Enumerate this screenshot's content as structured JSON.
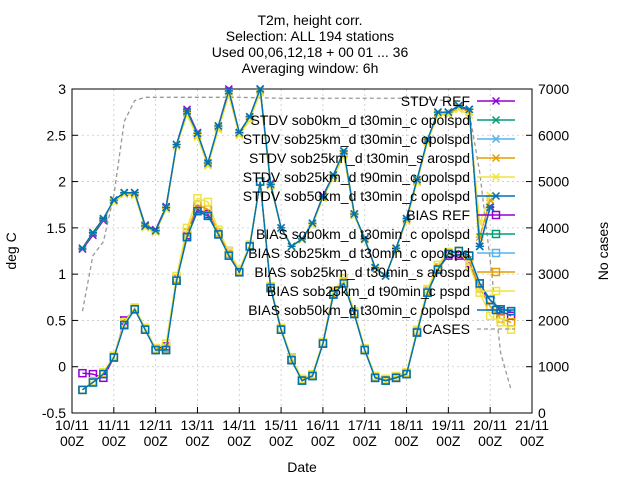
{
  "chart_data": {
    "type": "line",
    "title_lines": [
      "T2m, height corr.",
      "Selection: ALL    194 stations",
      "Used 00,06,12,18 + 00 01 ... 36",
      "Averaging window:  6h"
    ],
    "xlabel": "Date",
    "ylabel": "deg C",
    "y2label": "No cases",
    "ylim": [
      -0.5,
      3
    ],
    "y2lim": [
      0,
      7000
    ],
    "yticks": [
      "-0.5",
      "0",
      "0.5",
      "1",
      "1.5",
      "2",
      "2.5",
      "3"
    ],
    "y2ticks": [
      "0",
      "1000",
      "2000",
      "3000",
      "4000",
      "5000",
      "6000",
      "7000"
    ],
    "xticks": [
      {
        "date": "10/11",
        "hour": "00Z"
      },
      {
        "date": "11/11",
        "hour": "00Z"
      },
      {
        "date": "12/11",
        "hour": "00Z"
      },
      {
        "date": "13/11",
        "hour": "00Z"
      },
      {
        "date": "14/11",
        "hour": "00Z"
      },
      {
        "date": "15/11",
        "hour": "00Z"
      },
      {
        "date": "16/11",
        "hour": "00Z"
      },
      {
        "date": "17/11",
        "hour": "00Z"
      },
      {
        "date": "18/11",
        "hour": "00Z"
      },
      {
        "date": "19/11",
        "hour": "00Z"
      },
      {
        "date": "20/11",
        "hour": "00Z"
      },
      {
        "date": "21/11",
        "hour": "00Z"
      }
    ],
    "x_start_date": "10/11 00Z",
    "x_step_hours": 6,
    "x_step_note": "",
    "grid": true,
    "legend_position": "top-right",
    "series": [
      {
        "name": "STDV REF",
        "color": "#9400d3",
        "marker": "x",
        "values": [
          1.27,
          1.42,
          1.58,
          1.8,
          1.88,
          1.88,
          1.53,
          1.48,
          1.73,
          2.4,
          2.78,
          2.53,
          2.2,
          2.6,
          3.0,
          2.52,
          2.7,
          3.0,
          1.98,
          1.5,
          1.3,
          1.38,
          1.55,
          1.85,
          2.07,
          2.3,
          1.65,
          1.38,
          1.07,
          0.98,
          1.28,
          1.6,
          2.02,
          2.45,
          2.75,
          2.75,
          2.8,
          2.78,
          1.3,
          1.73
        ]
      },
      {
        "name": "STDV sob0km_d t30min_c opolspd",
        "color": "#009e73",
        "marker": "x",
        "values": [
          1.28,
          1.44,
          1.59,
          1.8,
          1.88,
          1.88,
          1.52,
          1.47,
          1.72,
          2.4,
          2.76,
          2.52,
          2.2,
          2.6,
          2.98,
          2.53,
          2.7,
          3.0,
          1.97,
          1.5,
          1.3,
          1.38,
          1.55,
          1.84,
          2.07,
          2.33,
          1.65,
          1.38,
          1.07,
          0.98,
          1.28,
          1.6,
          2.02,
          2.45,
          2.75,
          2.75,
          2.82,
          2.78,
          1.3,
          1.72
        ]
      },
      {
        "name": "STDV sob25km_d t30min_c opolspd",
        "color": "#56b4e9",
        "marker": "x",
        "values": [
          1.28,
          1.45,
          1.6,
          1.8,
          1.88,
          1.88,
          1.52,
          1.46,
          1.72,
          2.4,
          2.76,
          2.52,
          2.2,
          2.6,
          2.98,
          2.53,
          2.7,
          3.0,
          1.97,
          1.5,
          1.3,
          1.38,
          1.55,
          1.84,
          2.07,
          2.33,
          1.65,
          1.38,
          1.07,
          0.98,
          1.28,
          1.6,
          2.02,
          2.45,
          2.75,
          2.75,
          2.82,
          2.78,
          1.3,
          1.72
        ]
      },
      {
        "name": "STDV sob25km_d t30min_s arospd",
        "color": "#e69f00",
        "marker": "x",
        "values": [
          1.28,
          1.45,
          1.6,
          1.79,
          1.87,
          1.86,
          1.51,
          1.46,
          1.71,
          2.4,
          2.74,
          2.5,
          2.18,
          2.58,
          2.95,
          2.52,
          2.68,
          2.98,
          1.96,
          1.5,
          1.3,
          1.37,
          1.54,
          1.83,
          2.05,
          2.3,
          1.64,
          1.37,
          1.06,
          0.98,
          1.27,
          1.58,
          2.0,
          2.43,
          2.73,
          2.73,
          2.8,
          2.75,
          1.4,
          1.8
        ]
      },
      {
        "name": "STDV sob25km_d t90min_c opolspd",
        "color": "#f0e442",
        "marker": "x",
        "values": [
          1.28,
          1.45,
          1.6,
          1.78,
          1.86,
          1.85,
          1.5,
          1.45,
          1.7,
          2.38,
          2.72,
          2.48,
          2.17,
          2.56,
          2.93,
          2.5,
          2.66,
          2.96,
          1.95,
          1.5,
          1.3,
          1.37,
          1.53,
          1.82,
          2.04,
          2.28,
          1.63,
          1.37,
          1.06,
          0.98,
          1.27,
          1.57,
          1.99,
          2.42,
          2.72,
          2.72,
          2.78,
          2.72,
          1.55,
          1.85
        ]
      },
      {
        "name": "STDV sob50km_d t30min_c opolspd",
        "color": "#0072b2",
        "marker": "x",
        "values": [
          1.28,
          1.45,
          1.6,
          1.8,
          1.88,
          1.88,
          1.52,
          1.47,
          1.72,
          2.4,
          2.76,
          2.52,
          2.2,
          2.6,
          2.98,
          2.53,
          2.7,
          3.0,
          1.97,
          1.5,
          1.3,
          1.38,
          1.55,
          1.84,
          2.07,
          2.33,
          1.65,
          1.38,
          1.07,
          0.98,
          1.28,
          1.6,
          2.02,
          2.45,
          2.75,
          2.75,
          2.82,
          2.78,
          1.3,
          1.72
        ]
      },
      {
        "name": "BIAS REF",
        "color": "#9400d3",
        "marker": "square",
        "values": [
          -0.07,
          -0.08,
          -0.12,
          0.1,
          0.5,
          0.62,
          0.4,
          0.2,
          0.22,
          0.93,
          1.42,
          1.7,
          1.65,
          1.43,
          1.25,
          1.02,
          1.3,
          2.0,
          0.85,
          0.4,
          0.1,
          -0.15,
          -0.1,
          0.25,
          0.78,
          0.9,
          0.57,
          0.18,
          -0.12,
          -0.15,
          -0.12,
          -0.08,
          0.37,
          0.8,
          1.05,
          1.2,
          1.2,
          1.12,
          0.85,
          0.72,
          0.6,
          0.55
        ]
      },
      {
        "name": "BIAS sob0km_d t30min_c opolspd",
        "color": "#009e73",
        "marker": "square",
        "values": [
          -0.25,
          -0.17,
          -0.08,
          0.1,
          0.45,
          0.62,
          0.4,
          0.18,
          0.18,
          0.93,
          1.4,
          1.68,
          1.63,
          1.43,
          1.2,
          1.02,
          1.3,
          2.0,
          0.85,
          0.4,
          0.07,
          -0.15,
          -0.1,
          0.25,
          0.78,
          0.9,
          0.57,
          0.18,
          -0.12,
          -0.15,
          -0.12,
          -0.08,
          0.37,
          0.8,
          1.05,
          1.22,
          1.25,
          1.2,
          0.9,
          0.72,
          0.62,
          0.6
        ]
      },
      {
        "name": "BIAS sob25km_d t30min_c opolspd",
        "color": "#56b4e9",
        "marker": "square",
        "values": [
          -0.25,
          -0.17,
          -0.08,
          0.1,
          0.45,
          0.62,
          0.4,
          0.18,
          0.18,
          0.93,
          1.4,
          1.68,
          1.63,
          1.43,
          1.2,
          1.02,
          1.3,
          2.0,
          0.85,
          0.4,
          0.07,
          -0.15,
          -0.1,
          0.25,
          0.78,
          0.9,
          0.57,
          0.18,
          -0.12,
          -0.15,
          -0.12,
          -0.08,
          0.37,
          0.8,
          1.05,
          1.22,
          1.25,
          1.2,
          0.9,
          0.72,
          0.62,
          0.6
        ]
      },
      {
        "name": "BIAS sob25km_d t30min_s arospd",
        "color": "#e69f00",
        "marker": "square",
        "values": [
          -0.25,
          -0.16,
          -0.07,
          0.11,
          0.46,
          0.63,
          0.41,
          0.19,
          0.2,
          0.95,
          1.45,
          1.75,
          1.7,
          1.45,
          1.22,
          1.03,
          1.31,
          2.0,
          0.86,
          0.41,
          0.08,
          -0.14,
          -0.09,
          0.26,
          0.8,
          0.92,
          0.58,
          0.19,
          -0.11,
          -0.14,
          -0.11,
          -0.07,
          0.38,
          0.82,
          1.07,
          1.22,
          1.25,
          1.15,
          0.85,
          0.65,
          0.52,
          0.48
        ]
      },
      {
        "name": "BIAS sob25km_d t90min_c pspd",
        "color": "#f0e442",
        "marker": "square",
        "values": [
          -0.25,
          -0.16,
          -0.06,
          0.12,
          0.48,
          0.64,
          0.42,
          0.2,
          0.25,
          0.98,
          1.5,
          1.82,
          1.78,
          1.48,
          1.25,
          1.05,
          1.32,
          2.0,
          0.87,
          0.42,
          0.1,
          -0.13,
          -0.08,
          0.27,
          0.82,
          0.95,
          0.6,
          0.2,
          -0.1,
          -0.13,
          -0.1,
          -0.06,
          0.4,
          0.84,
          1.1,
          1.24,
          1.25,
          1.1,
          0.8,
          0.55,
          0.48,
          0.4
        ]
      },
      {
        "name": "BIAS sob50km_d t30min_c opolspd",
        "color": "#0072b2",
        "marker": "square",
        "values": [
          -0.25,
          -0.17,
          -0.08,
          0.1,
          0.45,
          0.62,
          0.4,
          0.18,
          0.18,
          0.93,
          1.4,
          1.68,
          1.63,
          1.43,
          1.2,
          1.02,
          1.3,
          2.0,
          0.85,
          0.4,
          0.07,
          -0.15,
          -0.1,
          0.25,
          0.78,
          0.9,
          0.57,
          0.18,
          -0.12,
          -0.15,
          -0.12,
          -0.08,
          0.37,
          0.8,
          1.05,
          1.22,
          1.25,
          1.2,
          0.9,
          0.72,
          0.62,
          0.6
        ]
      }
    ],
    "cases": {
      "name": "CASES",
      "color": "#999999",
      "axis": "y2",
      "style": "dashed",
      "points": [
        {
          "x": 1,
          "y": 2200
        },
        {
          "x": 2,
          "y": 3400
        },
        {
          "x": 3,
          "y": 3700
        },
        {
          "x": 4,
          "y": 4700
        },
        {
          "x": 5,
          "y": 6300
        },
        {
          "x": 6,
          "y": 6750
        },
        {
          "x": 7,
          "y": 6820
        },
        {
          "x": 8,
          "y": 6820
        },
        {
          "x": 12,
          "y": 6820
        },
        {
          "x": 16,
          "y": 6820
        },
        {
          "x": 20,
          "y": 6800
        },
        {
          "x": 24,
          "y": 6800
        },
        {
          "x": 28,
          "y": 6800
        },
        {
          "x": 32,
          "y": 6800
        },
        {
          "x": 36,
          "y": 6750
        },
        {
          "x": 38,
          "y": 6500
        },
        {
          "x": 39,
          "y": 5200
        },
        {
          "x": 40,
          "y": 3300
        },
        {
          "x": 41,
          "y": 1300
        },
        {
          "x": 42,
          "y": 500
        }
      ]
    }
  }
}
